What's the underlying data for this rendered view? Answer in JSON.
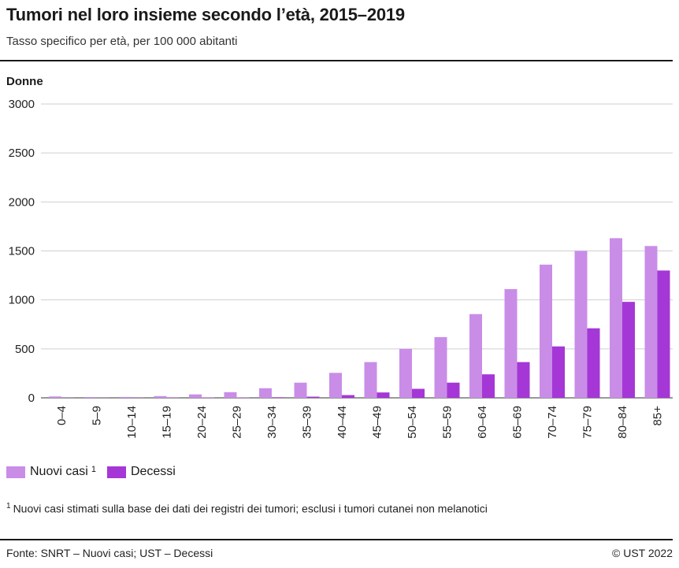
{
  "header": {
    "title": "Tumori nel loro insieme secondo l’età, 2015–2019",
    "subtitle": "Tasso specifico per età, per 100 000 abitanti"
  },
  "panel_label": "Donne",
  "legend": {
    "items": [
      {
        "label": "Nuovi casi",
        "superscript": "1",
        "color": "#c98de8"
      },
      {
        "label": "Decessi",
        "superscript": "",
        "color": "#a537d6"
      }
    ]
  },
  "footnote": {
    "marker": "1",
    "text": "Nuovi casi stimati sulla base dei dati dei registri dei tumori; esclusi i tumori cutanei non melanotici"
  },
  "footer": {
    "source": "Fonte: SNRT – Nuovi casi; UST – Decessi",
    "copyright": "© UST 2022"
  },
  "chart_data": {
    "type": "bar",
    "title": "Tumori nel loro insieme secondo l’età, 2015–2019",
    "subtitle": "Tasso specifico per età, per 100 000 abitanti",
    "ylabel": "Donne",
    "ylim": [
      0,
      3000
    ],
    "yticks": [
      0,
      500,
      1000,
      1500,
      2000,
      2500,
      3000
    ],
    "grid": true,
    "legend_position": "bottom-left",
    "categories": [
      "0–4",
      "5–9",
      "10–14",
      "15–19",
      "20–24",
      "25–29",
      "30–34",
      "35–39",
      "40–44",
      "45–49",
      "50–54",
      "55–59",
      "60–64",
      "65–69",
      "70–74",
      "75–79",
      "80–84",
      "85+"
    ],
    "series": [
      {
        "name": "Nuovi casi",
        "color": "#c98de8",
        "values": [
          14,
          8,
          9,
          18,
          35,
          58,
          98,
          155,
          255,
          365,
          500,
          620,
          855,
          1110,
          1360,
          1500,
          1630,
          1550
        ]
      },
      {
        "name": "Decessi",
        "color": "#a537d6",
        "values": [
          2,
          2,
          2,
          3,
          4,
          4,
          6,
          12,
          28,
          55,
          92,
          155,
          240,
          365,
          525,
          710,
          980,
          1300
        ]
      }
    ]
  }
}
